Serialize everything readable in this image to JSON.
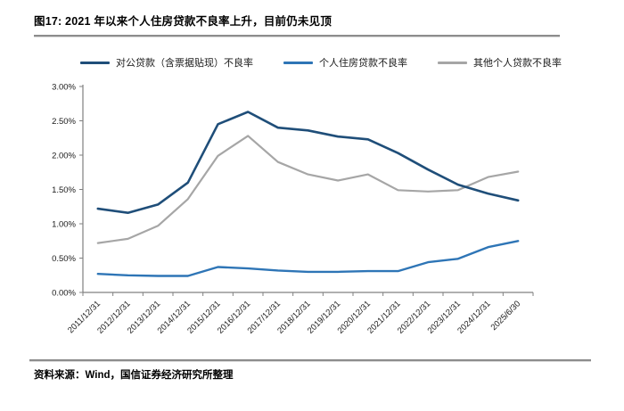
{
  "figure": {
    "title": "图17: 2021 年以来个人住房贷款不良率上升，目前仍未见顶",
    "source": "资料来源：Wind，国信证券经济研究所整理"
  },
  "colors": {
    "corporate_line": "#1F4E79",
    "mortgage_line": "#2E75B6",
    "other_line": "#A6A6A6",
    "axis": "#808080",
    "tick_text": "#1a1a1a",
    "divider": "#8c8c8c"
  },
  "chart_data": {
    "type": "line",
    "title": "2021 年以来个人住房贷款不良率上升，目前仍未见顶",
    "categories": [
      "2011/12/31",
      "2012/12/31",
      "2013/12/31",
      "2014/12/31",
      "2015/12/31",
      "2016/12/31",
      "2017/12/31",
      "2018/12/31",
      "2019/12/31",
      "2020/12/31",
      "2021/12/31",
      "2022/12/31",
      "2023/12/31",
      "2024/12/31",
      "2025/6/30"
    ],
    "series": [
      {
        "name": "对公贷款（含票据贴现）不良率",
        "color": "#1F4E79",
        "values": [
          1.22,
          1.16,
          1.28,
          1.6,
          2.45,
          2.63,
          2.4,
          2.36,
          2.27,
          2.23,
          2.03,
          1.79,
          1.57,
          1.44,
          1.34
        ]
      },
      {
        "name": "个人住房贷款不良率",
        "color": "#2E75B6",
        "values": [
          0.27,
          0.25,
          0.24,
          0.24,
          0.37,
          0.35,
          0.32,
          0.3,
          0.3,
          0.31,
          0.31,
          0.44,
          0.49,
          0.66,
          0.75
        ]
      },
      {
        "name": "其他个人贷款不良率",
        "color": "#A6A6A6",
        "values": [
          0.72,
          0.78,
          0.97,
          1.36,
          1.99,
          2.28,
          1.9,
          1.72,
          1.63,
          1.72,
          1.49,
          1.47,
          1.49,
          1.68,
          1.76
        ]
      }
    ],
    "xlabel": "",
    "ylabel": "",
    "ylim": [
      0,
      3
    ],
    "ytick_step": 0.5,
    "ytick_labels": [
      "0.00%",
      "0.50%",
      "1.00%",
      "1.50%",
      "2.00%",
      "2.50%",
      "3.00%"
    ],
    "grid": false,
    "legend_position": "top"
  }
}
